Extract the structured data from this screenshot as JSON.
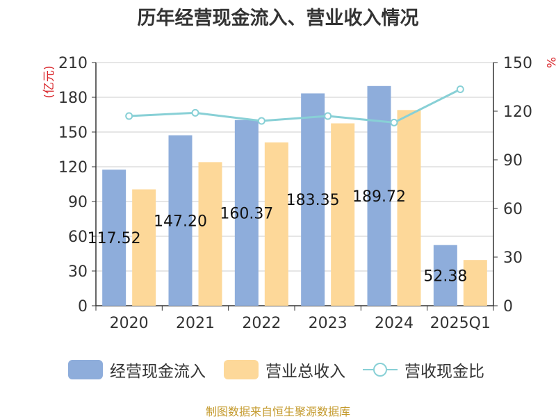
{
  "title": "历年经营现金流入、营业收入情况",
  "footer": "制图数据来自恒生聚源数据库",
  "chart_data": {
    "type": "bar",
    "categories": [
      "2020",
      "2021",
      "2022",
      "2023",
      "2024",
      "2025Q1"
    ],
    "series": [
      {
        "name": "经营现金流入",
        "type": "bar",
        "axis": "left",
        "color": "#8eaddb",
        "values": [
          117.52,
          147.2,
          160.37,
          183.35,
          189.72,
          52.38
        ],
        "data_labels": [
          "117.52",
          "147.20",
          "160.37",
          "183.35",
          "189.72",
          "52.38"
        ]
      },
      {
        "name": "营业总收入",
        "type": "bar",
        "axis": "left",
        "color": "#fdd899",
        "values": [
          100.5,
          124,
          141,
          157.5,
          169,
          39.5
        ]
      },
      {
        "name": "营收现金比",
        "type": "line",
        "axis": "right",
        "color": "#88d0d6",
        "values": [
          117,
          119,
          114,
          117,
          113,
          133.5
        ]
      }
    ],
    "left_axis": {
      "label": "(亿元)",
      "min": 0,
      "max": 210,
      "ticks": [
        0,
        30,
        60,
        90,
        120,
        150,
        180,
        210
      ]
    },
    "right_axis": {
      "label": "%",
      "min": 0,
      "max": 150,
      "ticks": [
        0,
        30,
        60,
        90,
        120,
        150
      ]
    },
    "grid": true,
    "legend_position": "bottom"
  }
}
